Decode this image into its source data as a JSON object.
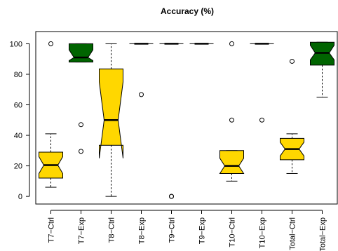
{
  "chart_data": {
    "type": "boxplot",
    "title": "Accuracy (%)",
    "xlabel": "",
    "ylabel": "",
    "ylim": [
      -5,
      108
    ],
    "yticks": [
      0,
      20,
      40,
      60,
      80,
      100
    ],
    "grid": false,
    "legend": "none",
    "colors": {
      "ctrl": "#ffd700",
      "exp": "#006400"
    },
    "categories": [
      "T7−Ctrl",
      "T7−Exp",
      "T8−Ctrl",
      "T8−Exp",
      "T9−Ctrl",
      "T9−Exp",
      "T10−Ctrl",
      "T10−Exp",
      "Total−Ctrl",
      "Total−Exp"
    ],
    "boxes": [
      {
        "group": "ctrl",
        "whisker_low": 6,
        "q1": 12,
        "median": 20.5,
        "q3": 29,
        "whisker_high": 41,
        "notch": [
          15,
          26
        ],
        "outliers": [
          100
        ]
      },
      {
        "group": "exp",
        "whisker_low": 88,
        "q1": 88,
        "median": 91,
        "q3": 100,
        "whisker_high": 100,
        "notch": [
          89,
          96
        ],
        "outliers": [
          47,
          29.5
        ]
      },
      {
        "group": "ctrl",
        "whisker_low": 0,
        "q1": 33.5,
        "median": 50,
        "q3": 83.5,
        "whisker_high": 100,
        "notch": [
          25,
          75
        ],
        "outliers": []
      },
      {
        "group": "exp",
        "whisker_low": 100,
        "q1": 100,
        "median": 100,
        "q3": 100,
        "whisker_high": 100,
        "notch": [
          100,
          100
        ],
        "outliers": [
          66.7
        ]
      },
      {
        "group": "exp",
        "whisker_low": 100,
        "q1": 100,
        "median": 100,
        "q3": 100,
        "whisker_high": 100,
        "notch": [
          100,
          100
        ],
        "outliers": [
          0,
          0
        ]
      },
      {
        "group": "exp",
        "whisker_low": 100,
        "q1": 100,
        "median": 100,
        "q3": 100,
        "whisker_high": 100,
        "notch": [
          100,
          100
        ],
        "outliers": []
      },
      {
        "group": "ctrl",
        "whisker_low": 10,
        "q1": 15,
        "median": 20,
        "q3": 30,
        "whisker_high": 30,
        "notch": [
          15,
          25
        ],
        "outliers": [
          100,
          50
        ]
      },
      {
        "group": "exp",
        "whisker_low": 100,
        "q1": 100,
        "median": 100,
        "q3": 100,
        "whisker_high": 100,
        "notch": [
          100,
          100
        ],
        "outliers": [
          50
        ]
      },
      {
        "group": "ctrl",
        "whisker_low": 15,
        "q1": 24,
        "median": 31,
        "q3": 38,
        "whisker_high": 41,
        "notch": [
          26.5,
          35.5
        ],
        "outliers": [
          88.5
        ]
      },
      {
        "group": "exp",
        "whisker_low": 65,
        "q1": 86,
        "median": 94,
        "q3": 101,
        "whisker_high": 101,
        "notch": [
          89.5,
          99
        ],
        "outliers": []
      }
    ]
  }
}
